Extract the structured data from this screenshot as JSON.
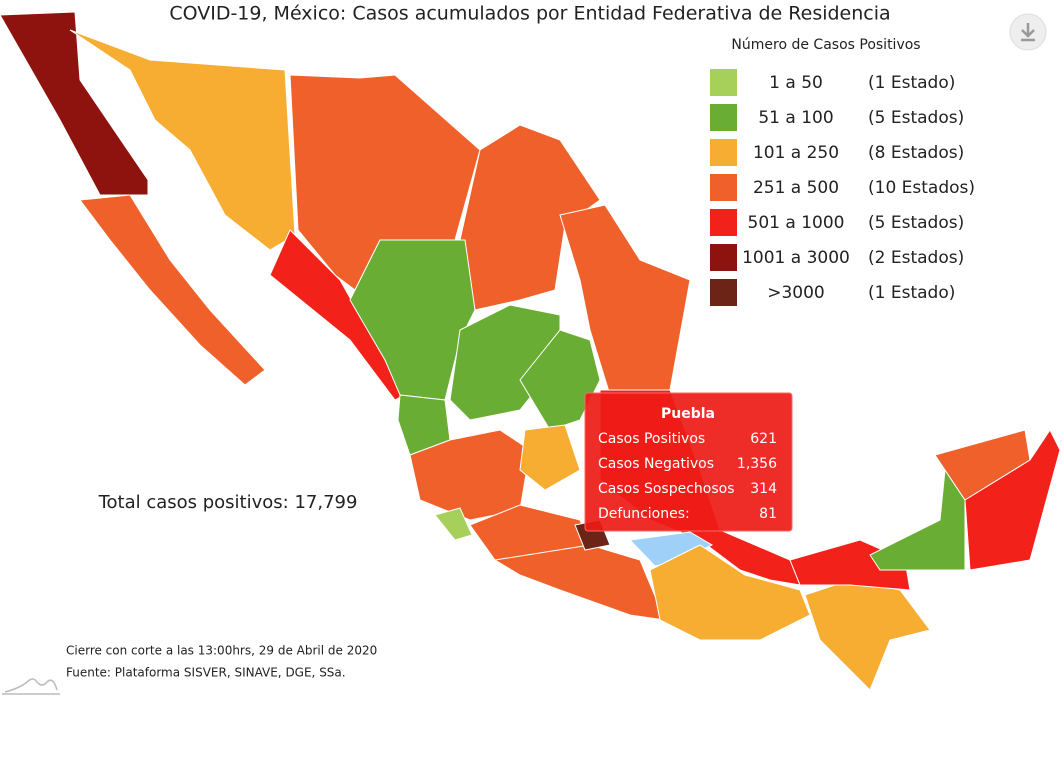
{
  "header": {
    "title": "COVID-19, México: Casos acumulados por Entidad Federativa de Residencia"
  },
  "legend": {
    "title": "Número de Casos Positivos",
    "items": [
      {
        "range": "1 a 50",
        "count": "(1 Estado)",
        "color": "#a6d05a"
      },
      {
        "range": "51 a 100",
        "count": "(5 Estados)",
        "color": "#6aad35"
      },
      {
        "range": "101 a 250",
        "count": "(8 Estados)",
        "color": "#f7ad32"
      },
      {
        "range": "251 a 500",
        "count": "(10 Estados)",
        "color": "#f0602a"
      },
      {
        "range": "501 a 1000",
        "count": "(5 Estados)",
        "color": "#f2211a"
      },
      {
        "range": "1001 a 3000",
        "count": "(2 Estados)",
        "color": "#8e120d"
      },
      {
        "range": ">3000",
        "count": "(1 Estado)",
        "color": "#6b2415"
      }
    ]
  },
  "total": "Total casos positivos: 17,799",
  "tooltip": {
    "title": "Puebla",
    "rows": [
      {
        "label": "Casos Positivos",
        "value": "621"
      },
      {
        "label": "Casos Negativos",
        "value": "1,356"
      },
      {
        "label": "Casos Sospechosos",
        "value": "314"
      },
      {
        "label": "Defunciones:",
        "value": "81"
      }
    ]
  },
  "footer": {
    "lines": [
      "Cierre con corte a las 13:00hrs, 29 de Abril de 2020",
      "Fuente: Plataforma SISVER, SINAVE, DGE, SSa."
    ]
  }
}
